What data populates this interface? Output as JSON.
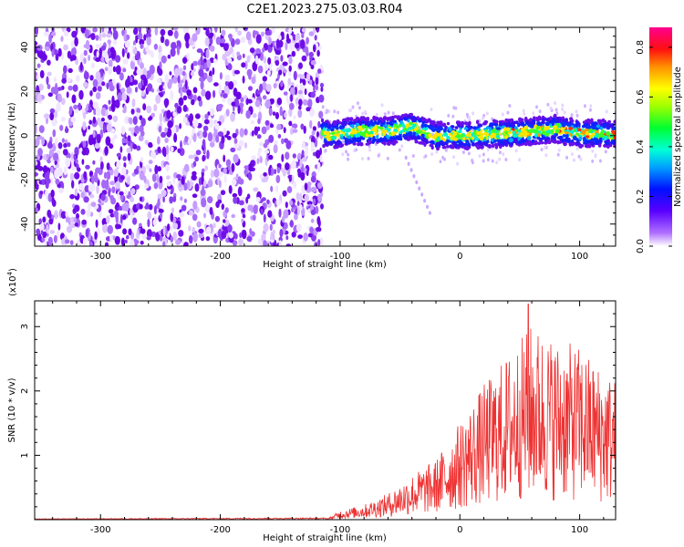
{
  "title": "C2E1.2023.275.03.03.R04",
  "colors": {
    "signal_line": "#ee3333",
    "noise_purple": "#7010e8",
    "axes": "#000000"
  },
  "chart_data": [
    {
      "type": "heatmap",
      "name": "spectrogram",
      "xlabel": "Height of straight line (km)",
      "ylabel": "Frequency (Hz)",
      "xlim": [
        -355,
        130
      ],
      "ylim": [
        -50,
        49
      ],
      "xticks": [
        -300,
        -200,
        -100,
        0,
        100
      ],
      "yticks": [
        -40,
        -20,
        0,
        20,
        40
      ],
      "colorbar": {
        "label": "Normalized spectral amplitude",
        "range": [
          0,
          0.88
        ],
        "ticks": [
          "0.0",
          "0.2",
          "0.4",
          "0.6",
          "0.8"
        ],
        "colormap": "rainbow (white-purple-blue-cyan-green-yellow-orange-red-magenta)"
      },
      "features": {
        "noise_region_x": [
          -355,
          -115
        ],
        "signal_band_x": [
          -115,
          130
        ],
        "signal_center_hz": [
          [
            -110,
            0
          ],
          [
            -90,
            2
          ],
          [
            -60,
            2
          ],
          [
            -40,
            4
          ],
          [
            -20,
            0
          ],
          [
            0,
            0
          ],
          [
            40,
            1
          ],
          [
            60,
            2
          ],
          [
            80,
            3
          ],
          [
            100,
            1
          ],
          [
            130,
            1
          ]
        ],
        "signal_halfwidth_hz": 6,
        "strongest_region_x": [
          30,
          130
        ],
        "faint_streak": [
          [
            -45,
            -10
          ],
          [
            -25,
            -35
          ]
        ]
      }
    },
    {
      "type": "line",
      "name": "snr",
      "xlabel": "Height of straight line (km)",
      "ylabel": "SNR (10 * v/v)",
      "yscale_label": "(x10",
      "yscale_exponent": "4",
      "yscale_suffix": ")",
      "xlim": [
        -355,
        130
      ],
      "ylim": [
        0,
        3.4
      ],
      "xticks": [
        -300,
        -200,
        -100,
        0,
        100
      ],
      "yticks": [
        1,
        2,
        3
      ],
      "series": [
        {
          "values_description": "noisy envelope",
          "envelope": [
            {
              "x": -355,
              "y": 0.01
            },
            {
              "x": -110,
              "y": 0.02
            },
            {
              "x": -100,
              "y": 0.12
            },
            {
              "x": -80,
              "y": 0.2
            },
            {
              "x": -60,
              "y": 0.35
            },
            {
              "x": -40,
              "y": 0.6
            },
            {
              "x": -20,
              "y": 0.8
            },
            {
              "x": 0,
              "y": 1.3
            },
            {
              "x": 20,
              "y": 1.8
            },
            {
              "x": 40,
              "y": 2.2
            },
            {
              "x": 60,
              "y": 2.6
            },
            {
              "x": 80,
              "y": 2.4
            },
            {
              "x": 100,
              "y": 2.3
            },
            {
              "x": 120,
              "y": 2.0
            },
            {
              "x": 130,
              "y": 1.9
            }
          ],
          "peak": {
            "x": 57,
            "y": 3.35
          }
        }
      ]
    }
  ]
}
